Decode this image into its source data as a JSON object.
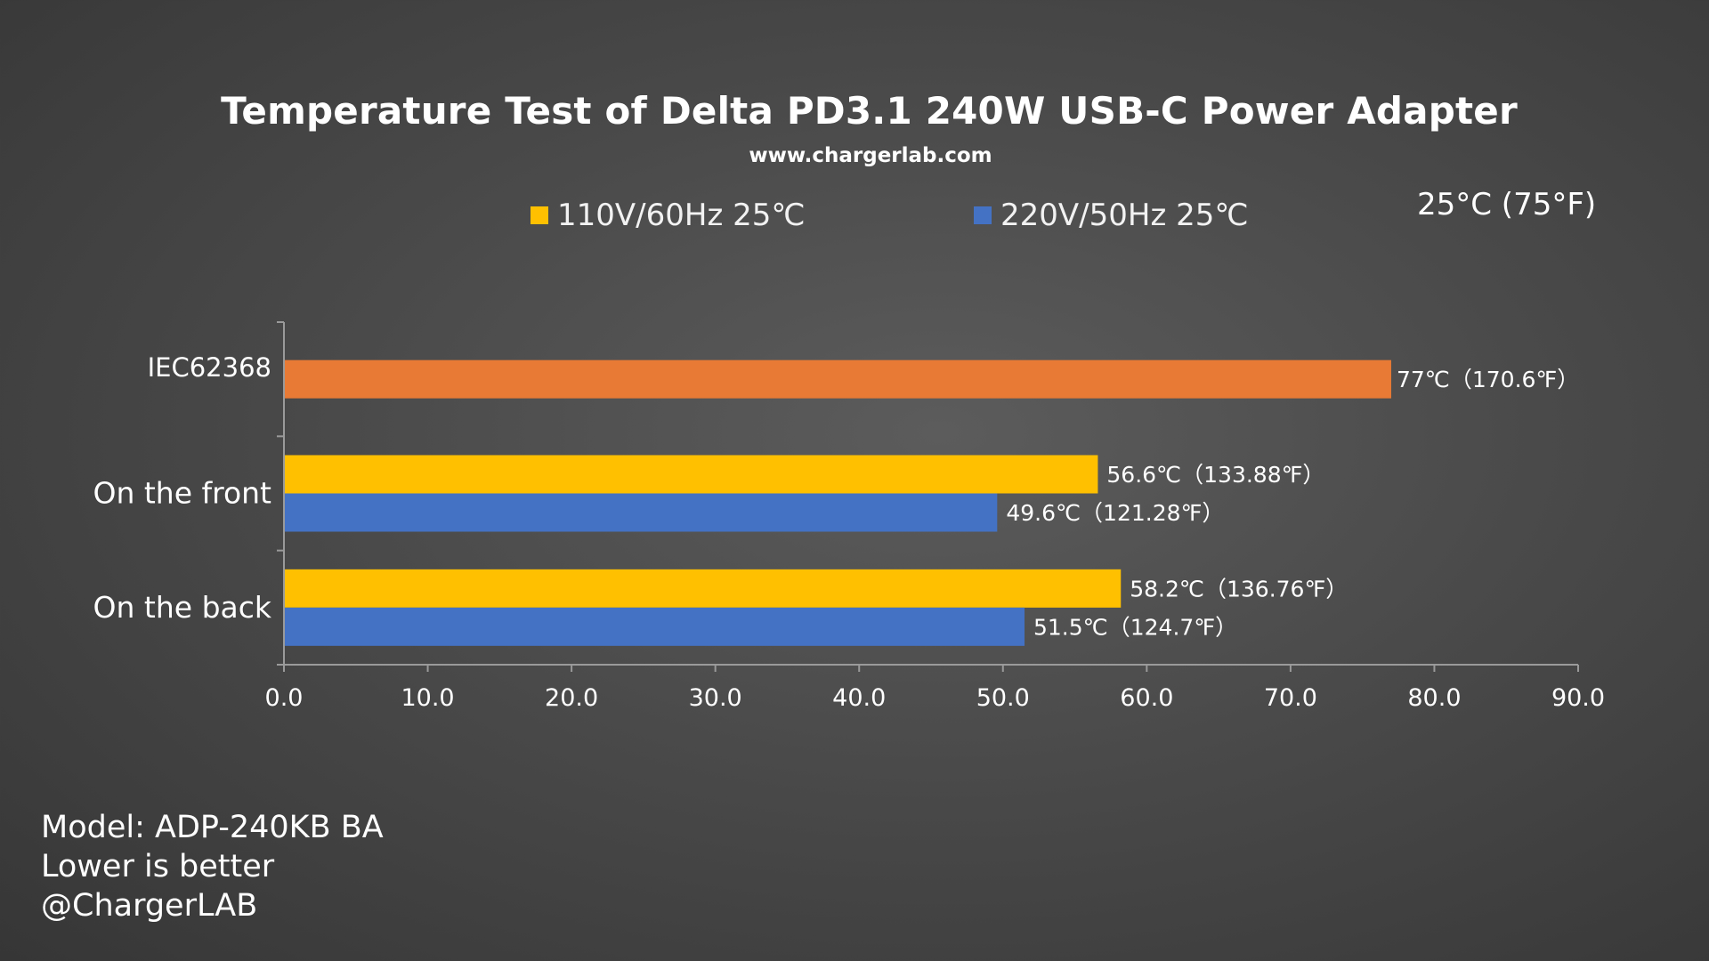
{
  "chart_data": {
    "type": "bar",
    "orientation": "horizontal",
    "title": "Temperature Test of Delta PD3.1 240W USB-C Power Adapter",
    "subtitle": "www.chargerlab.com",
    "ambient_label": "25°C (75°F)",
    "categories": [
      "IEC62368",
      "On the front",
      "On the back"
    ],
    "series": [
      {
        "name": "IEC62368",
        "color": "#e87a35",
        "values": [
          77,
          null,
          null
        ],
        "labels": [
          "77℃（170.6℉）",
          null,
          null
        ]
      },
      {
        "name": "110V/60Hz 25℃",
        "color": "#ffc000",
        "values": [
          null,
          56.6,
          58.2
        ],
        "labels": [
          null,
          "56.6℃（133.88℉）",
          "58.2℃（136.76℉）"
        ]
      },
      {
        "name": "220V/50Hz 25℃",
        "color": "#4472c4",
        "values": [
          null,
          49.6,
          51.5
        ],
        "labels": [
          null,
          "49.6℃（121.28℉）",
          "51.5℃（124.7℉）"
        ]
      }
    ],
    "legend": [
      {
        "name": "110V/60Hz 25℃",
        "color": "#ffc000"
      },
      {
        "name": "220V/50Hz 25℃",
        "color": "#4472c4"
      }
    ],
    "legend_position": "top",
    "xlim": [
      0,
      90
    ],
    "xticks": [
      "0.0",
      "10.0",
      "20.0",
      "30.0",
      "40.0",
      "50.0",
      "60.0",
      "70.0",
      "80.0",
      "90.0"
    ],
    "grid": false
  },
  "notes": {
    "model": "Model: ADP-240KB BA",
    "lower": "Lower is better",
    "credit": "@ChargerLAB"
  }
}
